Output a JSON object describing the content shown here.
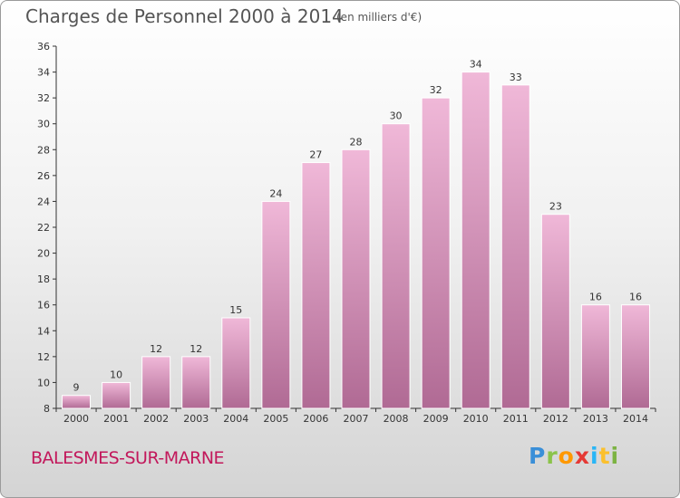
{
  "header": {
    "title": "Charges de Personnel 2000 à 2014",
    "subtitle": "(en milliers d'€)"
  },
  "footer": {
    "commune": "BALESMES-SUR-MARNE",
    "logo": {
      "letters": [
        "P",
        "r",
        "o",
        "x",
        "i",
        "t",
        "i"
      ]
    }
  },
  "colors": {
    "bar_light": "#f0b8d8",
    "bar_dark": "#b06a94",
    "commune_text": "#c2185b"
  },
  "chart_data": {
    "type": "bar",
    "title": "Charges de Personnel 2000 à 2014",
    "subtitle": "(en milliers d'€)",
    "categories": [
      "2000",
      "2001",
      "2002",
      "2003",
      "2004",
      "2005",
      "2006",
      "2007",
      "2008",
      "2009",
      "2010",
      "2011",
      "2012",
      "2013",
      "2014"
    ],
    "values": [
      9,
      10,
      12,
      12,
      15,
      24,
      27,
      28,
      30,
      32,
      34,
      33,
      23,
      16,
      16
    ],
    "ylim": [
      8,
      36
    ],
    "yticks": [
      8,
      10,
      12,
      14,
      16,
      18,
      20,
      22,
      24,
      26,
      28,
      30,
      32,
      34,
      36
    ],
    "grid": false,
    "legend": "none"
  }
}
